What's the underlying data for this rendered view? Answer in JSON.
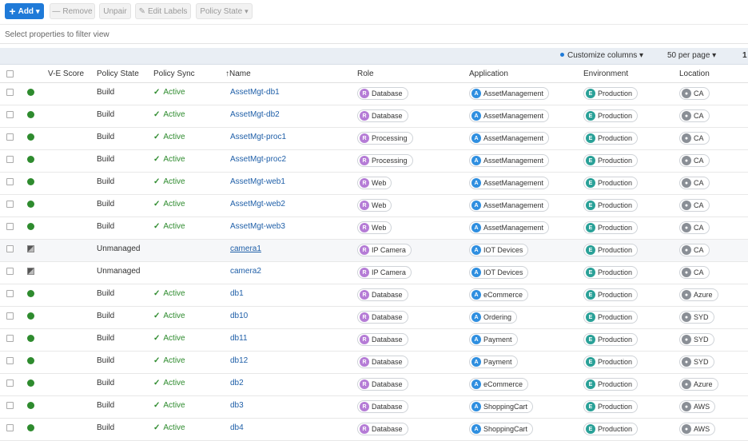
{
  "toolbar": {
    "add": "Add",
    "remove": "Remove",
    "unpair": "Unpair",
    "edit_labels": "Edit Labels",
    "policy_state": "Policy State"
  },
  "filter": {
    "placeholder": "Select properties to filter view"
  },
  "subbar": {
    "customize_columns": "Customize columns",
    "per_page": "50 per page",
    "page": "1"
  },
  "columns": {
    "ve_score": "V-E Score",
    "policy_state": "Policy State",
    "policy_sync": "Policy Sync",
    "name": "Name",
    "role": "Role",
    "application": "Application",
    "environment": "Environment",
    "location": "Location"
  },
  "sort_indicator": "↑",
  "check_glyph": "✓",
  "colors": {
    "primary": "#1f7ad8",
    "active_green": "#2e8b2e",
    "link": "#1f5fa8",
    "role_icon": "#b57cd6",
    "app_icon": "#2f8fe0",
    "env_icon": "#2aa198",
    "loc_icon": "#8a8f96"
  },
  "rows": [
    {
      "status": "green",
      "state": "Build",
      "sync": "Active",
      "name": "AssetMgt-db1",
      "role": "Database",
      "app": "AssetManagement",
      "env": "Production",
      "loc": "CA"
    },
    {
      "status": "green",
      "state": "Build",
      "sync": "Active",
      "name": "AssetMgt-db2",
      "role": "Database",
      "app": "AssetManagement",
      "env": "Production",
      "loc": "CA"
    },
    {
      "status": "green",
      "state": "Build",
      "sync": "Active",
      "name": "AssetMgt-proc1",
      "role": "Processing",
      "app": "AssetManagement",
      "env": "Production",
      "loc": "CA"
    },
    {
      "status": "green",
      "state": "Build",
      "sync": "Active",
      "name": "AssetMgt-proc2",
      "role": "Processing",
      "app": "AssetManagement",
      "env": "Production",
      "loc": "CA"
    },
    {
      "status": "green",
      "state": "Build",
      "sync": "Active",
      "name": "AssetMgt-web1",
      "role": "Web",
      "app": "AssetManagement",
      "env": "Production",
      "loc": "CA"
    },
    {
      "status": "green",
      "state": "Build",
      "sync": "Active",
      "name": "AssetMgt-web2",
      "role": "Web",
      "app": "AssetManagement",
      "env": "Production",
      "loc": "CA"
    },
    {
      "status": "green",
      "state": "Build",
      "sync": "Active",
      "name": "AssetMgt-web3",
      "role": "Web",
      "app": "AssetManagement",
      "env": "Production",
      "loc": "CA"
    },
    {
      "status": "unmanaged",
      "state": "Unmanaged",
      "sync": "",
      "name": "camera1",
      "role": "IP Camera",
      "app": "IOT Devices",
      "env": "Production",
      "loc": "CA",
      "underline": true,
      "shaded": true
    },
    {
      "status": "unmanaged",
      "state": "Unmanaged",
      "sync": "",
      "name": "camera2",
      "role": "IP Camera",
      "app": "IOT Devices",
      "env": "Production",
      "loc": "CA"
    },
    {
      "status": "green",
      "state": "Build",
      "sync": "Active",
      "name": "db1",
      "role": "Database",
      "app": "eCommerce",
      "env": "Production",
      "loc": "Azure"
    },
    {
      "status": "green",
      "state": "Build",
      "sync": "Active",
      "name": "db10",
      "role": "Database",
      "app": "Ordering",
      "env": "Production",
      "loc": "SYD"
    },
    {
      "status": "green",
      "state": "Build",
      "sync": "Active",
      "name": "db11",
      "role": "Database",
      "app": "Payment",
      "env": "Production",
      "loc": "SYD"
    },
    {
      "status": "green",
      "state": "Build",
      "sync": "Active",
      "name": "db12",
      "role": "Database",
      "app": "Payment",
      "env": "Production",
      "loc": "SYD"
    },
    {
      "status": "green",
      "state": "Build",
      "sync": "Active",
      "name": "db2",
      "role": "Database",
      "app": "eCommerce",
      "env": "Production",
      "loc": "Azure"
    },
    {
      "status": "green",
      "state": "Build",
      "sync": "Active",
      "name": "db3",
      "role": "Database",
      "app": "ShoppingCart",
      "env": "Production",
      "loc": "AWS"
    },
    {
      "status": "green",
      "state": "Build",
      "sync": "Active",
      "name": "db4",
      "role": "Database",
      "app": "ShoppingCart",
      "env": "Production",
      "loc": "AWS"
    }
  ]
}
